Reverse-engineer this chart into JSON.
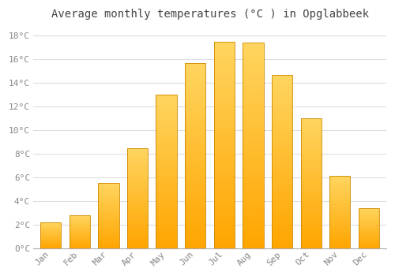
{
  "months": [
    "Jan",
    "Feb",
    "Mar",
    "Apr",
    "May",
    "Jun",
    "Jul",
    "Aug",
    "Sep",
    "Oct",
    "Nov",
    "Dec"
  ],
  "values": [
    2.2,
    2.8,
    5.5,
    8.5,
    13.0,
    15.7,
    17.5,
    17.4,
    14.7,
    11.0,
    6.1,
    3.4
  ],
  "bar_color_bottom": "#FFA500",
  "bar_color_top": "#FFD060",
  "bar_edge_color": "#CC8800",
  "background_color": "#FFFFFF",
  "grid_color": "#DDDDDD",
  "title": "Average monthly temperatures (°C ) in Opglabbeek",
  "title_fontsize": 10,
  "tick_label_color": "#888888",
  "title_color": "#444444",
  "ylim": [
    0,
    19
  ],
  "yticks": [
    0,
    2,
    4,
    6,
    8,
    10,
    12,
    14,
    16,
    18
  ],
  "ytick_labels": [
    "0°C",
    "2°C",
    "4°C",
    "6°C",
    "8°C",
    "10°C",
    "12°C",
    "14°C",
    "16°C",
    "18°C"
  ]
}
